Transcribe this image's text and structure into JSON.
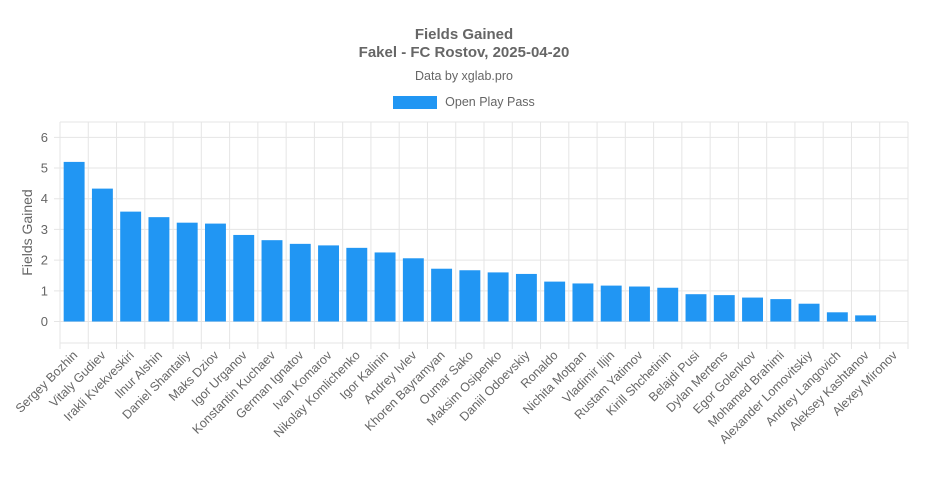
{
  "chart_data": {
    "type": "bar",
    "title": "Fields Gained",
    "subtitle": "Fakel - FC Rostov, 2025-04-20",
    "caption": "Data by xglab.pro",
    "ylabel": "Fields Gained",
    "xlabel": "",
    "ylim": [
      -0.7,
      6.5
    ],
    "yticks": [
      0,
      1,
      2,
      3,
      4,
      5,
      6
    ],
    "grid": true,
    "legend_position": "top-center",
    "series": [
      {
        "name": "Open Play Pass",
        "color": "#2196f3",
        "values": [
          5.2,
          4.33,
          3.58,
          3.4,
          3.22,
          3.19,
          2.82,
          2.65,
          2.53,
          2.48,
          2.4,
          2.25,
          2.06,
          1.72,
          1.67,
          1.6,
          1.55,
          1.3,
          1.24,
          1.17,
          1.14,
          1.1,
          0.89,
          0.86,
          0.78,
          0.73,
          0.58,
          0.3,
          0.2,
          0
        ]
      }
    ],
    "categories": [
      "Sergey Bozhin",
      "Vitaly Gudiev",
      "Irakli Kvekveskiri",
      "Ilnur Alshin",
      "Daniel Shantaliy",
      "Maks Dziov",
      "Igor Urganov",
      "Konstantin Kuchaev",
      "German Ignatov",
      "Ivan Komarov",
      "Nikolay Komlichenko",
      "Igor Kalinin",
      "Andrey Ivlev",
      "Khoren Bayramyan",
      "Oumar Sako",
      "Maksim Osipenko",
      "Daniil Odoevskiy",
      "Ronaldo",
      "Nichita Motpan",
      "Vladimir Iljin",
      "Rustam Yatimov",
      "Kirill Shchetinin",
      "Belajdi Pusi",
      "Dylan Mertens",
      "Egor Golenkov",
      "Mohamed Brahimi",
      "Alexander Lomovitskiy",
      "Andrey Langovich",
      "Aleksey Kashtanov",
      "Alexey Mironov"
    ]
  }
}
